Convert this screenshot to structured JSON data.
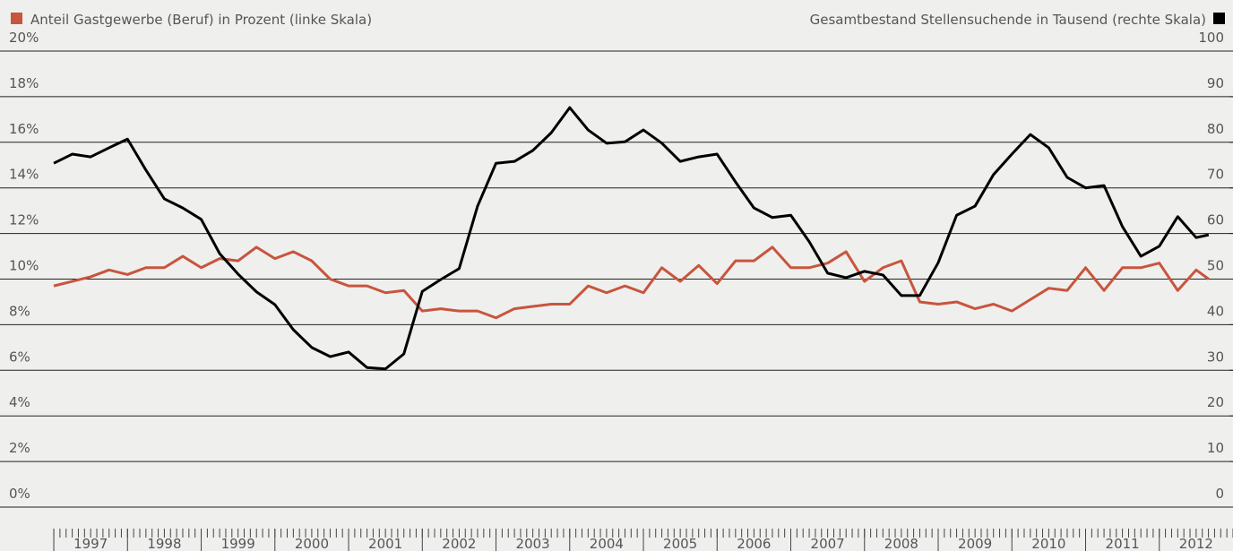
{
  "chart_data": {
    "type": "line",
    "x": [
      1997,
      1997.25,
      1997.5,
      1997.75,
      1998,
      1998.25,
      1998.5,
      1998.75,
      1999,
      1999.25,
      1999.5,
      1999.75,
      2000,
      2000.25,
      2000.5,
      2000.75,
      2001,
      2001.25,
      2001.5,
      2001.75,
      2002,
      2002.25,
      2002.5,
      2002.75,
      2003,
      2003.25,
      2003.5,
      2003.75,
      2004,
      2004.25,
      2004.5,
      2004.75,
      2005,
      2005.25,
      2005.5,
      2005.75,
      2006,
      2006.25,
      2006.5,
      2006.75,
      2007,
      2007.25,
      2007.5,
      2007.75,
      2008,
      2008.25,
      2008.5,
      2008.75,
      2009,
      2009.25,
      2009.5,
      2009.75,
      2010,
      2010.25,
      2010.5,
      2010.75,
      2011,
      2011.25,
      2011.5,
      2011.75,
      2012,
      2012.25,
      2012.5,
      2012.67
    ],
    "series": [
      {
        "name": "Anteil Gastgewerbe (Beruf) in Prozent (linke Skala)",
        "color": "#c8553d",
        "values": [
          9.7,
          9.9,
          10.1,
          10.4,
          10.2,
          10.5,
          10.5,
          11.0,
          10.5,
          10.9,
          10.8,
          11.4,
          10.9,
          11.2,
          10.8,
          10.0,
          9.7,
          9.7,
          9.4,
          9.5,
          8.6,
          8.7,
          8.6,
          8.6,
          8.3,
          8.7,
          8.8,
          8.9,
          8.9,
          9.7,
          9.4,
          9.7,
          9.4,
          10.5,
          9.9,
          10.6,
          9.8,
          10.8,
          10.8,
          11.4,
          10.5,
          10.5,
          10.7,
          11.2,
          9.9,
          10.5,
          10.8,
          9.0,
          8.9,
          9.0,
          8.7,
          8.9,
          8.6,
          9.1,
          9.6,
          9.5,
          10.5,
          9.5,
          10.5,
          10.5,
          10.7,
          9.5,
          10.4,
          10.0
        ]
      },
      {
        "name": "Gesamtbestand Stellensuchende in Tausend (rechte Skala)",
        "color": "#000000",
        "axis": "y2",
        "values": [
          75.4,
          77.4,
          76.8,
          78.8,
          80.7,
          73.9,
          67.6,
          65.6,
          63.1,
          55.6,
          51.1,
          47.2,
          44.4,
          38.9,
          35.0,
          33.0,
          34.0,
          30.6,
          30.3,
          33.6,
          47.3,
          49.9,
          52.3,
          66.0,
          75.4,
          75.8,
          78.2,
          82.1,
          87.6,
          82.7,
          79.8,
          80.1,
          82.7,
          79.8,
          75.8,
          76.8,
          77.4,
          71.3,
          65.6,
          63.5,
          64.0,
          58.2,
          51.3,
          50.3,
          51.7,
          50.9,
          46.4,
          46.4,
          53.6,
          64.0,
          66.0,
          72.9,
          77.4,
          81.7,
          78.8,
          72.3,
          70.0,
          70.5,
          61.5,
          55.0,
          57.2,
          63.7,
          59.1,
          59.7
        ]
      }
    ],
    "xlim": [
      1996.27,
      2013
    ],
    "xticks": [
      1997,
      1998,
      1999,
      2000,
      2001,
      2002,
      2003,
      2004,
      2005,
      2006,
      2007,
      2008,
      2009,
      2010,
      2011,
      2012
    ],
    "ylim": [
      0,
      20
    ],
    "yticks": [
      {
        "value": 0,
        "label": "0%"
      },
      {
        "value": 2,
        "label": "2%"
      },
      {
        "value": 4,
        "label": "4%"
      },
      {
        "value": 6,
        "label": "6%"
      },
      {
        "value": 8,
        "label": "8%"
      },
      {
        "value": 10,
        "label": "10%"
      },
      {
        "value": 12,
        "label": "12%"
      },
      {
        "value": 14,
        "label": "14%"
      },
      {
        "value": 16,
        "label": "16%"
      },
      {
        "value": 18,
        "label": "18%"
      },
      {
        "value": 20,
        "label": "20%"
      }
    ],
    "y2lim": [
      0,
      100
    ],
    "y2ticks": [
      0,
      10,
      20,
      30,
      40,
      50,
      60,
      70,
      80,
      90,
      100
    ],
    "grid": true
  }
}
